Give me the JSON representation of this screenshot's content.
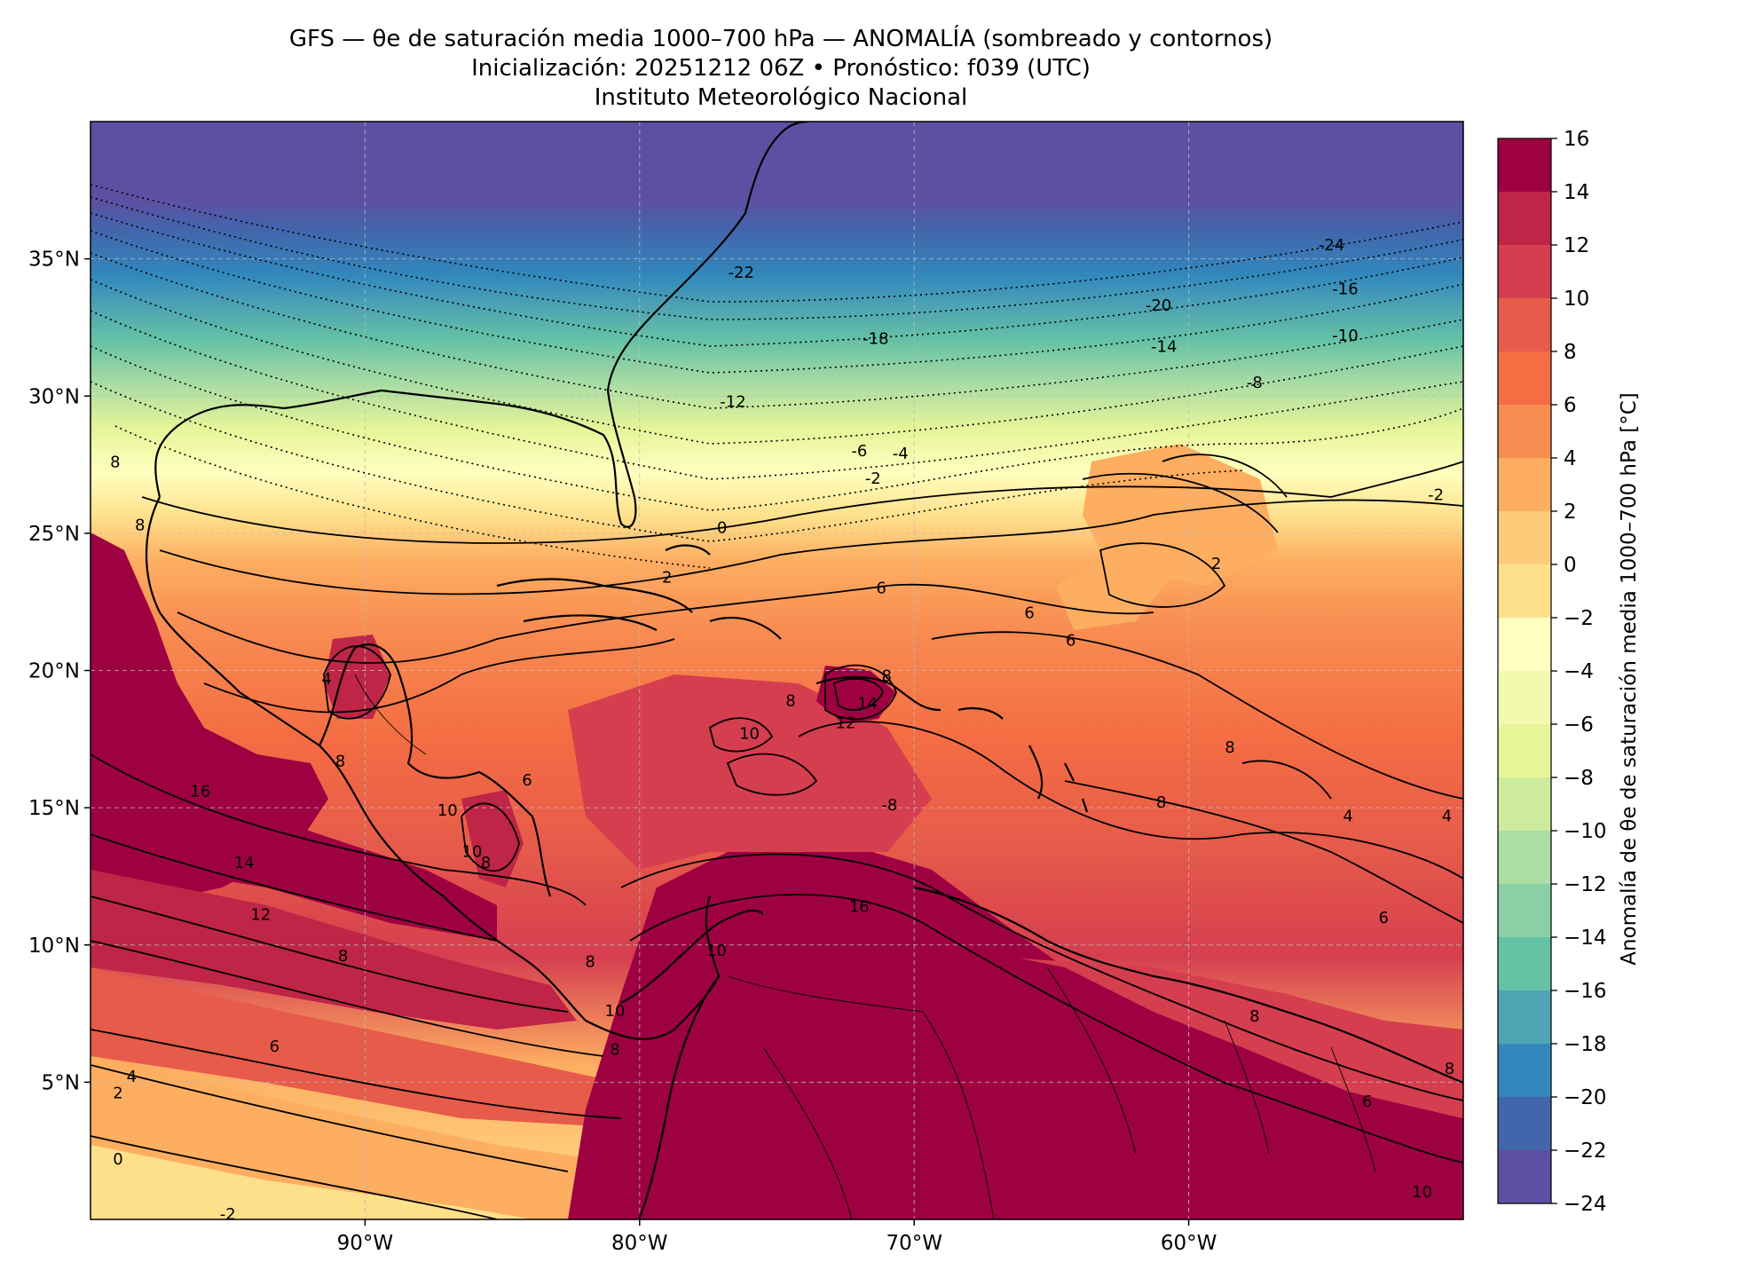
{
  "title": {
    "line1": "GFS — θe de saturación media 1000–700 hPa — ANOMALÍA (sombreado y contornos)",
    "line2": "Inicialización: 20251212 06Z   •   Pronóstico: f039 (UTC)",
    "line3": "Instituto Meteorológico Nacional"
  },
  "map": {
    "lon_range": [
      -100,
      -50
    ],
    "lat_range": [
      0,
      40
    ],
    "lon_ticks": [
      {
        "value": -90,
        "label": "90°W"
      },
      {
        "value": -80,
        "label": "80°W"
      },
      {
        "value": -70,
        "label": "70°W"
      },
      {
        "value": -60,
        "label": "60°W"
      }
    ],
    "lat_ticks": [
      {
        "value": 35,
        "label": "35°N"
      },
      {
        "value": 30,
        "label": "30°N"
      },
      {
        "value": 25,
        "label": "25°N"
      },
      {
        "value": 20,
        "label": "20°N"
      },
      {
        "value": 15,
        "label": "15°N"
      },
      {
        "value": 10,
        "label": "10°N"
      },
      {
        "value": 5,
        "label": "5°N"
      }
    ],
    "gridlines": true,
    "contour_labels": [
      {
        "text": "-24",
        "lon": -54.8,
        "lat": 35.5
      },
      {
        "text": "-22",
        "lon": -76.3,
        "lat": 34.5
      },
      {
        "text": "-20",
        "lon": -61.1,
        "lat": 33.3
      },
      {
        "text": "-18",
        "lon": -71.4,
        "lat": 32.1
      },
      {
        "text": "-16",
        "lon": -54.3,
        "lat": 33.9
      },
      {
        "text": "-14",
        "lon": -60.9,
        "lat": 31.8
      },
      {
        "text": "-12",
        "lon": -76.6,
        "lat": 29.8
      },
      {
        "text": "-10",
        "lon": -54.3,
        "lat": 32.2
      },
      {
        "text": "-8",
        "lon": -57.6,
        "lat": 30.5
      },
      {
        "text": "-6",
        "lon": -72.0,
        "lat": 28.0
      },
      {
        "text": "-4",
        "lon": -70.5,
        "lat": 27.9
      },
      {
        "text": "-2",
        "lon": -71.5,
        "lat": 27.0
      },
      {
        "text": "-2",
        "lon": -51.0,
        "lat": 26.4
      },
      {
        "text": "0",
        "lon": -77.0,
        "lat": 25.2
      },
      {
        "text": "2",
        "lon": -79.0,
        "lat": 23.4
      },
      {
        "text": "2",
        "lon": -59.0,
        "lat": 23.9
      },
      {
        "text": "6",
        "lon": -71.2,
        "lat": 23.0
      },
      {
        "text": "6",
        "lon": -65.8,
        "lat": 22.1
      },
      {
        "text": "6",
        "lon": -64.3,
        "lat": 21.1
      },
      {
        "text": "8",
        "lon": -99.1,
        "lat": 27.6
      },
      {
        "text": "8",
        "lon": -98.2,
        "lat": 25.3
      },
      {
        "text": "4",
        "lon": -91.4,
        "lat": 19.7
      },
      {
        "text": "8",
        "lon": -71.0,
        "lat": 19.8
      },
      {
        "text": "14",
        "lon": -71.7,
        "lat": 18.8
      },
      {
        "text": "12",
        "lon": -72.5,
        "lat": 18.1
      },
      {
        "text": "8",
        "lon": -74.5,
        "lat": 18.9
      },
      {
        "text": "10",
        "lon": -76.0,
        "lat": 17.7
      },
      {
        "text": "8",
        "lon": -90.9,
        "lat": 16.7
      },
      {
        "text": "6",
        "lon": -84.1,
        "lat": 16.0
      },
      {
        "text": "10",
        "lon": -87.0,
        "lat": 14.9
      },
      {
        "text": "10",
        "lon": -86.1,
        "lat": 13.4
      },
      {
        "text": "8",
        "lon": -85.6,
        "lat": 13.0
      },
      {
        "text": "-8",
        "lon": -70.9,
        "lat": 15.1
      },
      {
        "text": "8",
        "lon": -58.5,
        "lat": 17.2
      },
      {
        "text": "8",
        "lon": -61.0,
        "lat": 15.2
      },
      {
        "text": "4",
        "lon": -54.2,
        "lat": 14.7
      },
      {
        "text": "4",
        "lon": -50.6,
        "lat": 14.7
      },
      {
        "text": "16",
        "lon": -96.0,
        "lat": 15.6
      },
      {
        "text": "14",
        "lon": -94.4,
        "lat": 13.0
      },
      {
        "text": "12",
        "lon": -93.8,
        "lat": 11.1
      },
      {
        "text": "8",
        "lon": -90.8,
        "lat": 9.6
      },
      {
        "text": "8",
        "lon": -81.8,
        "lat": 9.4
      },
      {
        "text": "16",
        "lon": -72.0,
        "lat": 11.4
      },
      {
        "text": "10",
        "lon": -77.2,
        "lat": 9.8
      },
      {
        "text": "10",
        "lon": -80.9,
        "lat": 7.6
      },
      {
        "text": "8",
        "lon": -80.9,
        "lat": 6.2
      },
      {
        "text": "6",
        "lon": -93.3,
        "lat": 6.3
      },
      {
        "text": "4",
        "lon": -98.5,
        "lat": 5.2
      },
      {
        "text": "2",
        "lon": -99.0,
        "lat": 4.6
      },
      {
        "text": "6",
        "lon": -52.9,
        "lat": 11.0
      },
      {
        "text": "8",
        "lon": -57.6,
        "lat": 7.4
      },
      {
        "text": "6",
        "lon": -53.5,
        "lat": 4.3
      },
      {
        "text": "8",
        "lon": -50.5,
        "lat": 5.5
      },
      {
        "text": "10",
        "lon": -51.5,
        "lat": 1.0
      },
      {
        "text": "0",
        "lon": -99.0,
        "lat": 2.2
      },
      {
        "text": "-2",
        "lon": -95.0,
        "lat": 0.2
      }
    ]
  },
  "colorbar": {
    "label": "Anomalía de θe de saturación media 1000–700 hPa [°C]",
    "levels": [
      -24,
      -22,
      -20,
      -18,
      -16,
      -14,
      -12,
      -10,
      -8,
      -6,
      -4,
      -2,
      0,
      2,
      4,
      6,
      8,
      10,
      12,
      14,
      16
    ],
    "tick_labels": [
      "−24",
      "−22",
      "−20",
      "−18",
      "−16",
      "−14",
      "−12",
      "−10",
      "−8",
      "−6",
      "−4",
      "−2",
      "0",
      "2",
      "4",
      "6",
      "8",
      "10",
      "12",
      "14",
      "16"
    ],
    "colors": [
      "#5e4fa2",
      "#4266ac",
      "#3288bd",
      "#4fa4b3",
      "#66c2a5",
      "#89d0a4",
      "#abdda4",
      "#cdeb9d",
      "#e6f598",
      "#f3fab0",
      "#ffffbf",
      "#fee08b",
      "#fdcb7a",
      "#fdae61",
      "#f88d52",
      "#f46d43",
      "#e65b4a",
      "#d53e4f",
      "#be2547",
      "#9e0142"
    ]
  }
}
